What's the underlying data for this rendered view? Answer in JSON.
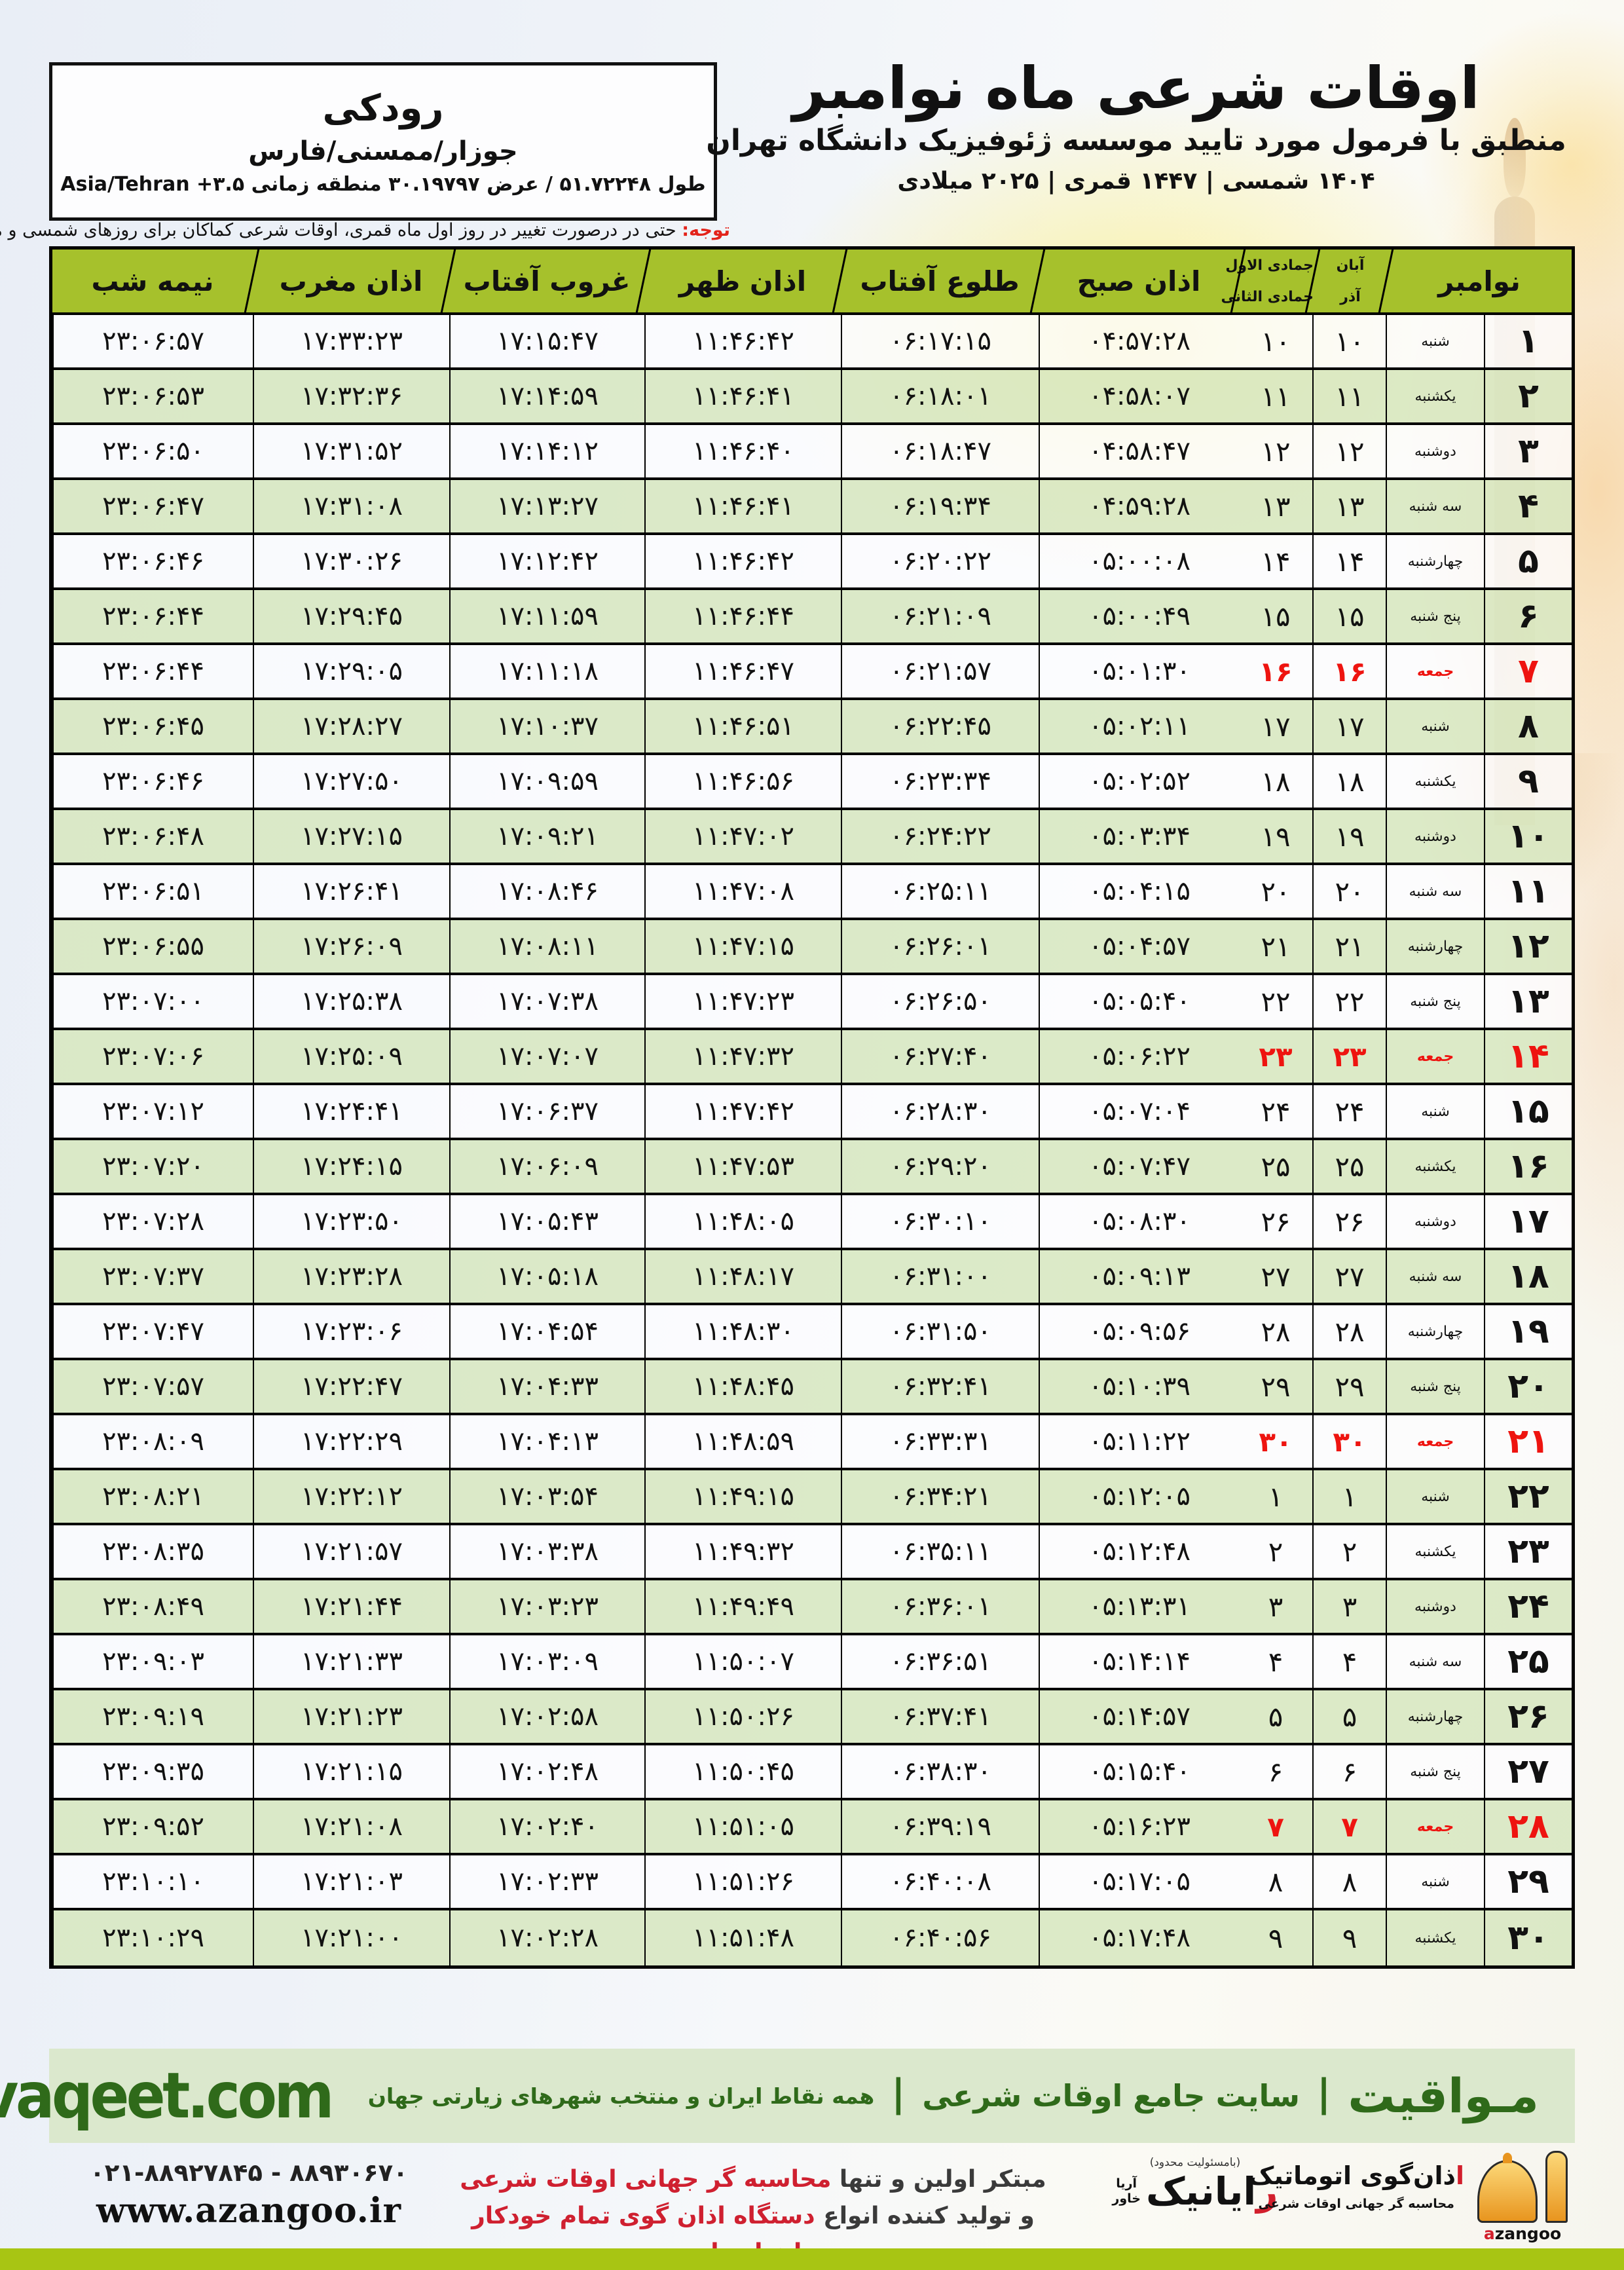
{
  "location_box": {
    "city": "رودکی",
    "region": "جوزار/ممسنی/فارس",
    "coords_rtl": "طول ۵۱.۷۲۲۴۸ / عرض ۳۰.۱۹۷۹۷ منطقه زمانی",
    "coords_ltr": "Asia/Tehran +۳.۵"
  },
  "header": {
    "title": "اوقات شرعی ماه نوامبر",
    "subtitle": "منطبق با فرمول مورد تایید موسسه ژئوفیزیک دانشگاه تهران",
    "years": "۱۴۰۴ شمسی | ۱۴۴۷ قمری | ۲۰۲۵ میلادی"
  },
  "notice": {
    "label": "توجه:",
    "text": " حتی در درصورت تغییر در روز اول ماه قمری، اوقات شرعی کماکان برای روزهای شمسی و میلادی معتبر است."
  },
  "table": {
    "headers": {
      "november": "نوامبر",
      "persian_month_top": "آبان",
      "hijri_month_top": "جمادی الاول",
      "persian_month_bottom": "آذر",
      "hijri_month_bottom": "جمادی الثانی",
      "sobh": "اذان صبح",
      "tolu": "طلوع آفتاب",
      "zohr": "اذان ظهر",
      "ghorub": "غروب آفتاب",
      "maghrib": "اذان مغرب",
      "nimeh": "نیمه شب"
    },
    "rows": [
      {
        "nov": "۱",
        "weekday": "شنبه",
        "pm": "۱۰",
        "hm": "۱۰",
        "sobh": "۰۴:۵۷:۲۸",
        "tolu": "۰۶:۱۷:۱۵",
        "zohr": "۱۱:۴۶:۴۲",
        "ghorub": "۱۷:۱۵:۴۷",
        "maghrib": "۱۷:۳۳:۲۳",
        "nimeh": "۲۳:۰۶:۵۷",
        "friday": false
      },
      {
        "nov": "۲",
        "weekday": "یکشنبه",
        "pm": "۱۱",
        "hm": "۱۱",
        "sobh": "۰۴:۵۸:۰۷",
        "tolu": "۰۶:۱۸:۰۱",
        "zohr": "۱۱:۴۶:۴۱",
        "ghorub": "۱۷:۱۴:۵۹",
        "maghrib": "۱۷:۳۲:۳۶",
        "nimeh": "۲۳:۰۶:۵۳",
        "friday": false
      },
      {
        "nov": "۳",
        "weekday": "دوشنبه",
        "pm": "۱۲",
        "hm": "۱۲",
        "sobh": "۰۴:۵۸:۴۷",
        "tolu": "۰۶:۱۸:۴۷",
        "zohr": "۱۱:۴۶:۴۰",
        "ghorub": "۱۷:۱۴:۱۲",
        "maghrib": "۱۷:۳۱:۵۲",
        "nimeh": "۲۳:۰۶:۵۰",
        "friday": false
      },
      {
        "nov": "۴",
        "weekday": "سه شنبه",
        "pm": "۱۳",
        "hm": "۱۳",
        "sobh": "۰۴:۵۹:۲۸",
        "tolu": "۰۶:۱۹:۳۴",
        "zohr": "۱۱:۴۶:۴۱",
        "ghorub": "۱۷:۱۳:۲۷",
        "maghrib": "۱۷:۳۱:۰۸",
        "nimeh": "۲۳:۰۶:۴۷",
        "friday": false
      },
      {
        "nov": "۵",
        "weekday": "چهارشنبه",
        "pm": "۱۴",
        "hm": "۱۴",
        "sobh": "۰۵:۰۰:۰۸",
        "tolu": "۰۶:۲۰:۲۲",
        "zohr": "۱۱:۴۶:۴۲",
        "ghorub": "۱۷:۱۲:۴۲",
        "maghrib": "۱۷:۳۰:۲۶",
        "nimeh": "۲۳:۰۶:۴۶",
        "friday": false
      },
      {
        "nov": "۶",
        "weekday": "پنج شنبه",
        "pm": "۱۵",
        "hm": "۱۵",
        "sobh": "۰۵:۰۰:۴۹",
        "tolu": "۰۶:۲۱:۰۹",
        "zohr": "۱۱:۴۶:۴۴",
        "ghorub": "۱۷:۱۱:۵۹",
        "maghrib": "۱۷:۲۹:۴۵",
        "nimeh": "۲۳:۰۶:۴۴",
        "friday": false
      },
      {
        "nov": "۷",
        "weekday": "جمعه",
        "pm": "۱۶",
        "hm": "۱۶",
        "sobh": "۰۵:۰۱:۳۰",
        "tolu": "۰۶:۲۱:۵۷",
        "zohr": "۱۱:۴۶:۴۷",
        "ghorub": "۱۷:۱۱:۱۸",
        "maghrib": "۱۷:۲۹:۰۵",
        "nimeh": "۲۳:۰۶:۴۴",
        "friday": true
      },
      {
        "nov": "۸",
        "weekday": "شنبه",
        "pm": "۱۷",
        "hm": "۱۷",
        "sobh": "۰۵:۰۲:۱۱",
        "tolu": "۰۶:۲۲:۴۵",
        "zohr": "۱۱:۴۶:۵۱",
        "ghorub": "۱۷:۱۰:۳۷",
        "maghrib": "۱۷:۲۸:۲۷",
        "nimeh": "۲۳:۰۶:۴۵",
        "friday": false
      },
      {
        "nov": "۹",
        "weekday": "یکشنبه",
        "pm": "۱۸",
        "hm": "۱۸",
        "sobh": "۰۵:۰۲:۵۲",
        "tolu": "۰۶:۲۳:۳۴",
        "zohr": "۱۱:۴۶:۵۶",
        "ghorub": "۱۷:۰۹:۵۹",
        "maghrib": "۱۷:۲۷:۵۰",
        "nimeh": "۲۳:۰۶:۴۶",
        "friday": false
      },
      {
        "nov": "۱۰",
        "weekday": "دوشنبه",
        "pm": "۱۹",
        "hm": "۱۹",
        "sobh": "۰۵:۰۳:۳۴",
        "tolu": "۰۶:۲۴:۲۲",
        "zohr": "۱۱:۴۷:۰۲",
        "ghorub": "۱۷:۰۹:۲۱",
        "maghrib": "۱۷:۲۷:۱۵",
        "nimeh": "۲۳:۰۶:۴۸",
        "friday": false
      },
      {
        "nov": "۱۱",
        "weekday": "سه شنبه",
        "pm": "۲۰",
        "hm": "۲۰",
        "sobh": "۰۵:۰۴:۱۵",
        "tolu": "۰۶:۲۵:۱۱",
        "zohr": "۱۱:۴۷:۰۸",
        "ghorub": "۱۷:۰۸:۴۶",
        "maghrib": "۱۷:۲۶:۴۱",
        "nimeh": "۲۳:۰۶:۵۱",
        "friday": false
      },
      {
        "nov": "۱۲",
        "weekday": "چهارشنبه",
        "pm": "۲۱",
        "hm": "۲۱",
        "sobh": "۰۵:۰۴:۵۷",
        "tolu": "۰۶:۲۶:۰۱",
        "zohr": "۱۱:۴۷:۱۵",
        "ghorub": "۱۷:۰۸:۱۱",
        "maghrib": "۱۷:۲۶:۰۹",
        "nimeh": "۲۳:۰۶:۵۵",
        "friday": false
      },
      {
        "nov": "۱۳",
        "weekday": "پنج شنبه",
        "pm": "۲۲",
        "hm": "۲۲",
        "sobh": "۰۵:۰۵:۴۰",
        "tolu": "۰۶:۲۶:۵۰",
        "zohr": "۱۱:۴۷:۲۳",
        "ghorub": "۱۷:۰۷:۳۸",
        "maghrib": "۱۷:۲۵:۳۸",
        "nimeh": "۲۳:۰۷:۰۰",
        "friday": false
      },
      {
        "nov": "۱۴",
        "weekday": "جمعه",
        "pm": "۲۳",
        "hm": "۲۳",
        "sobh": "۰۵:۰۶:۲۲",
        "tolu": "۰۶:۲۷:۴۰",
        "zohr": "۱۱:۴۷:۳۲",
        "ghorub": "۱۷:۰۷:۰۷",
        "maghrib": "۱۷:۲۵:۰۹",
        "nimeh": "۲۳:۰۷:۰۶",
        "friday": true
      },
      {
        "nov": "۱۵",
        "weekday": "شنبه",
        "pm": "۲۴",
        "hm": "۲۴",
        "sobh": "۰۵:۰۷:۰۴",
        "tolu": "۰۶:۲۸:۳۰",
        "zohr": "۱۱:۴۷:۴۲",
        "ghorub": "۱۷:۰۶:۳۷",
        "maghrib": "۱۷:۲۴:۴۱",
        "nimeh": "۲۳:۰۷:۱۲",
        "friday": false
      },
      {
        "nov": "۱۶",
        "weekday": "یکشنبه",
        "pm": "۲۵",
        "hm": "۲۵",
        "sobh": "۰۵:۰۷:۴۷",
        "tolu": "۰۶:۲۹:۲۰",
        "zohr": "۱۱:۴۷:۵۳",
        "ghorub": "۱۷:۰۶:۰۹",
        "maghrib": "۱۷:۲۴:۱۵",
        "nimeh": "۲۳:۰۷:۲۰",
        "friday": false
      },
      {
        "nov": "۱۷",
        "weekday": "دوشنبه",
        "pm": "۲۶",
        "hm": "۲۶",
        "sobh": "۰۵:۰۸:۳۰",
        "tolu": "۰۶:۳۰:۱۰",
        "zohr": "۱۱:۴۸:۰۵",
        "ghorub": "۱۷:۰۵:۴۳",
        "maghrib": "۱۷:۲۳:۵۰",
        "nimeh": "۲۳:۰۷:۲۸",
        "friday": false
      },
      {
        "nov": "۱۸",
        "weekday": "سه شنبه",
        "pm": "۲۷",
        "hm": "۲۷",
        "sobh": "۰۵:۰۹:۱۳",
        "tolu": "۰۶:۳۱:۰۰",
        "zohr": "۱۱:۴۸:۱۷",
        "ghorub": "۱۷:۰۵:۱۸",
        "maghrib": "۱۷:۲۳:۲۸",
        "nimeh": "۲۳:۰۷:۳۷",
        "friday": false
      },
      {
        "nov": "۱۹",
        "weekday": "چهارشنبه",
        "pm": "۲۸",
        "hm": "۲۸",
        "sobh": "۰۵:۰۹:۵۶",
        "tolu": "۰۶:۳۱:۵۰",
        "zohr": "۱۱:۴۸:۳۰",
        "ghorub": "۱۷:۰۴:۵۴",
        "maghrib": "۱۷:۲۳:۰۶",
        "nimeh": "۲۳:۰۷:۴۷",
        "friday": false
      },
      {
        "nov": "۲۰",
        "weekday": "پنج شنبه",
        "pm": "۲۹",
        "hm": "۲۹",
        "sobh": "۰۵:۱۰:۳۹",
        "tolu": "۰۶:۳۲:۴۱",
        "zohr": "۱۱:۴۸:۴۵",
        "ghorub": "۱۷:۰۴:۳۳",
        "maghrib": "۱۷:۲۲:۴۷",
        "nimeh": "۲۳:۰۷:۵۷",
        "friday": false
      },
      {
        "nov": "۲۱",
        "weekday": "جمعه",
        "pm": "۳۰",
        "hm": "۳۰",
        "sobh": "۰۵:۱۱:۲۲",
        "tolu": "۰۶:۳۳:۳۱",
        "zohr": "۱۱:۴۸:۵۹",
        "ghorub": "۱۷:۰۴:۱۳",
        "maghrib": "۱۷:۲۲:۲۹",
        "nimeh": "۲۳:۰۸:۰۹",
        "friday": true
      },
      {
        "nov": "۲۲",
        "weekday": "شنبه",
        "pm": "۱",
        "hm": "۱",
        "sobh": "۰۵:۱۲:۰۵",
        "tolu": "۰۶:۳۴:۲۱",
        "zohr": "۱۱:۴۹:۱۵",
        "ghorub": "۱۷:۰۳:۵۴",
        "maghrib": "۱۷:۲۲:۱۲",
        "nimeh": "۲۳:۰۸:۲۱",
        "friday": false
      },
      {
        "nov": "۲۳",
        "weekday": "یکشنبه",
        "pm": "۲",
        "hm": "۲",
        "sobh": "۰۵:۱۲:۴۸",
        "tolu": "۰۶:۳۵:۱۱",
        "zohr": "۱۱:۴۹:۳۲",
        "ghorub": "۱۷:۰۳:۳۸",
        "maghrib": "۱۷:۲۱:۵۷",
        "nimeh": "۲۳:۰۸:۳۵",
        "friday": false
      },
      {
        "nov": "۲۴",
        "weekday": "دوشنبه",
        "pm": "۳",
        "hm": "۳",
        "sobh": "۰۵:۱۳:۳۱",
        "tolu": "۰۶:۳۶:۰۱",
        "zohr": "۱۱:۴۹:۴۹",
        "ghorub": "۱۷:۰۳:۲۳",
        "maghrib": "۱۷:۲۱:۴۴",
        "nimeh": "۲۳:۰۸:۴۹",
        "friday": false
      },
      {
        "nov": "۲۵",
        "weekday": "سه شنبه",
        "pm": "۴",
        "hm": "۴",
        "sobh": "۰۵:۱۴:۱۴",
        "tolu": "۰۶:۳۶:۵۱",
        "zohr": "۱۱:۵۰:۰۷",
        "ghorub": "۱۷:۰۳:۰۹",
        "maghrib": "۱۷:۲۱:۳۳",
        "nimeh": "۲۳:۰۹:۰۳",
        "friday": false
      },
      {
        "nov": "۲۶",
        "weekday": "چهارشنبه",
        "pm": "۵",
        "hm": "۵",
        "sobh": "۰۵:۱۴:۵۷",
        "tolu": "۰۶:۳۷:۴۱",
        "zohr": "۱۱:۵۰:۲۶",
        "ghorub": "۱۷:۰۲:۵۸",
        "maghrib": "۱۷:۲۱:۲۳",
        "nimeh": "۲۳:۰۹:۱۹",
        "friday": false
      },
      {
        "nov": "۲۷",
        "weekday": "پنج شنبه",
        "pm": "۶",
        "hm": "۶",
        "sobh": "۰۵:۱۵:۴۰",
        "tolu": "۰۶:۳۸:۳۰",
        "zohr": "۱۱:۵۰:۴۵",
        "ghorub": "۱۷:۰۲:۴۸",
        "maghrib": "۱۷:۲۱:۱۵",
        "nimeh": "۲۳:۰۹:۳۵",
        "friday": false
      },
      {
        "nov": "۲۸",
        "weekday": "جمعه",
        "pm": "۷",
        "hm": "۷",
        "sobh": "۰۵:۱۶:۲۳",
        "tolu": "۰۶:۳۹:۱۹",
        "zohr": "۱۱:۵۱:۰۵",
        "ghorub": "۱۷:۰۲:۴۰",
        "maghrib": "۱۷:۲۱:۰۸",
        "nimeh": "۲۳:۰۹:۵۲",
        "friday": true
      },
      {
        "nov": "۲۹",
        "weekday": "شنبه",
        "pm": "۸",
        "hm": "۸",
        "sobh": "۰۵:۱۷:۰۵",
        "tolu": "۰۶:۴۰:۰۸",
        "zohr": "۱۱:۵۱:۲۶",
        "ghorub": "۱۷:۰۲:۳۳",
        "maghrib": "۱۷:۲۱:۰۳",
        "nimeh": "۲۳:۱۰:۱۰",
        "friday": false
      },
      {
        "nov": "۳۰",
        "weekday": "یکشنبه",
        "pm": "۹",
        "hm": "۹",
        "sobh": "۰۵:۱۷:۴۸",
        "tolu": "۰۶:۴۰:۵۶",
        "zohr": "۱۱:۵۱:۴۸",
        "ghorub": "۱۷:۰۲:۲۸",
        "maghrib": "۱۷:۲۱:۰۰",
        "nimeh": "۲۳:۱۰:۲۹",
        "friday": false
      }
    ]
  },
  "banner": {
    "brand": "مـواقیت",
    "separator": "|",
    "site_desc": "سایت جامع اوقات شرعی",
    "coverage": "همه نقاط ایران و منتخب شهرهای زیارتی جهان",
    "domain": "mavaqeet.com"
  },
  "contact": {
    "phones": "۰۲۱-۸۸۹۲۷۸۴۵ - ۸۸۹۳۰۶۷۰",
    "website": "www.azangoo.ir"
  },
  "promo": {
    "line1_black": "مبتکر اولین و تنها ",
    "line1_red": "محاسبه گر جهانی اوقات شرعی",
    "line2_black": "و تولید کننده انواع ",
    "line2_red": "دستگاه اذان گوی تمام خودکار ماهواره ای"
  },
  "rayanik": {
    "note": "(بامسئولیت محدود)",
    "name_initial": "ر",
    "name_rest": "ایانیک",
    "sub_top": "آریا",
    "sub_bottom": "خاور"
  },
  "azangoo": {
    "title_initial": "ا",
    "title_rest": "ذان‌گوی اتوماتیک",
    "tagline": "محاسبه گر جهانی اوقات شرعی",
    "latin_initial": "a",
    "latin_rest": "zangoo"
  },
  "colors": {
    "table_header_green": "#a6c12c",
    "row_green": "#d7e7c0",
    "friday_red": "#ee1410",
    "notice_red": "#e3231a",
    "banner_bg": "#dbe8cd",
    "brand_green": "#2f6a1a",
    "bottom_strip_green": "#a8c513",
    "logo_orange": "#e8951f",
    "promo_red": "#cf2030"
  }
}
